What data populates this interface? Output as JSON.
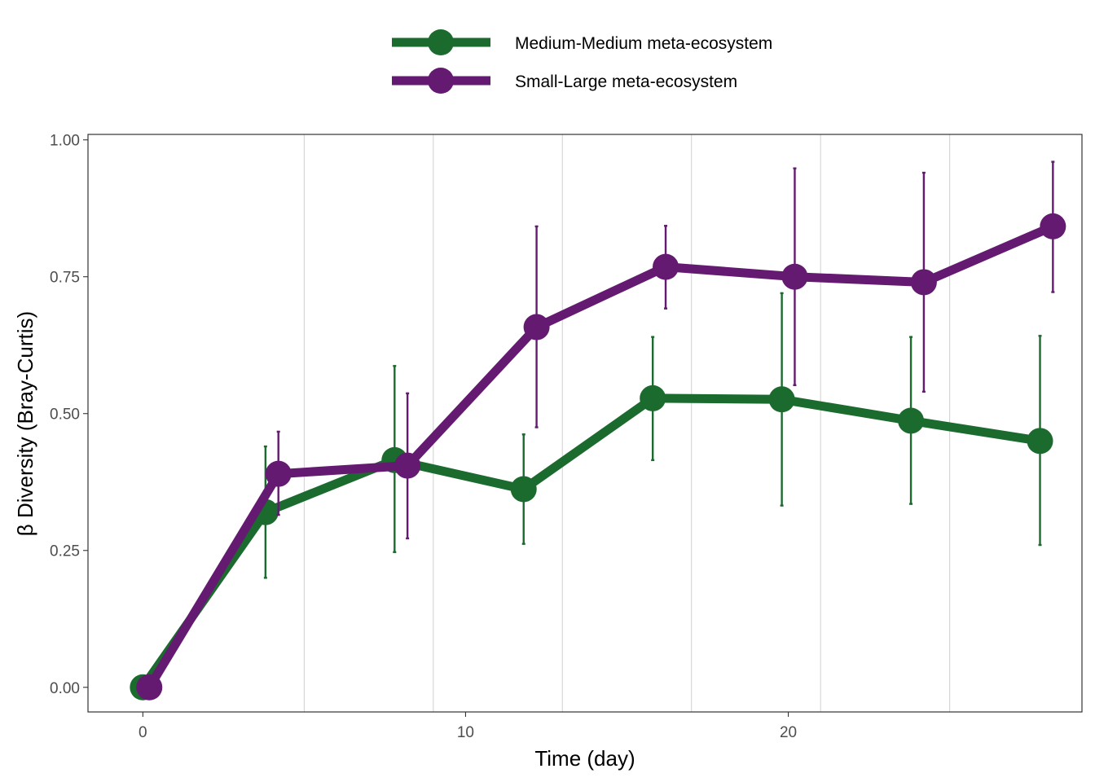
{
  "chart_data": {
    "type": "line",
    "title": "",
    "xlabel": "Time (day)",
    "ylabel": "β Diversity (Bray-Curtis)",
    "xlim": [
      -1.7,
      29.1
    ],
    "ylim": [
      -0.045,
      1.01
    ],
    "xticks": [
      0,
      10,
      20
    ],
    "yticks": [
      0,
      0.25,
      0.5,
      0.75,
      1.0
    ],
    "ytick_labels": [
      "0.00",
      "0.25",
      "0.50",
      "0.75",
      "1.00"
    ],
    "vertical_gridlines": [
      5,
      9,
      13,
      17,
      21,
      25
    ],
    "legend_position": "top",
    "series": [
      {
        "name": "Medium-Medium meta-ecosystem",
        "color": "#1b6b2e",
        "x": [
          0,
          3.8,
          7.8,
          11.8,
          15.8,
          19.8,
          23.8,
          27.8
        ],
        "y": [
          0.0,
          0.32,
          0.415,
          0.362,
          0.528,
          0.526,
          0.487,
          0.45
        ],
        "err_low": [
          0.0,
          0.2,
          0.247,
          0.262,
          0.415,
          0.332,
          0.335,
          0.26
        ],
        "err_high": [
          0.0,
          0.44,
          0.587,
          0.462,
          0.64,
          0.72,
          0.64,
          0.642
        ]
      },
      {
        "name": "Small-Large meta-ecosystem",
        "color": "#641a70",
        "x": [
          0.2,
          4.2,
          8.2,
          12.2,
          16.2,
          20.2,
          24.2,
          28.2
        ],
        "y": [
          0.0,
          0.39,
          0.405,
          0.658,
          0.768,
          0.75,
          0.74,
          0.842
        ],
        "err_low": [
          0.0,
          0.315,
          0.272,
          0.475,
          0.692,
          0.552,
          0.54,
          0.722
        ],
        "err_high": [
          0.0,
          0.467,
          0.537,
          0.842,
          0.843,
          0.948,
          0.94,
          0.96
        ]
      }
    ]
  }
}
